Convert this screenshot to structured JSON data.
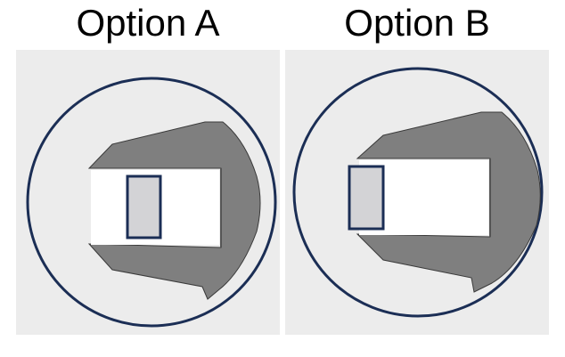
{
  "options": [
    {
      "label": "Option A"
    },
    {
      "label": "Option B"
    }
  ],
  "colors": {
    "panel_background": "#ececec",
    "circle_outline": "#1b2e55",
    "holder_body": "#7f7f7f",
    "holder_slot": "#ffffff",
    "object_fill": "#d3d3d6",
    "object_outline": "#1b2e55"
  },
  "icons": {
    "option_a_marker": "plus-icon",
    "option_b_marker": "hook-arrow-icon"
  }
}
